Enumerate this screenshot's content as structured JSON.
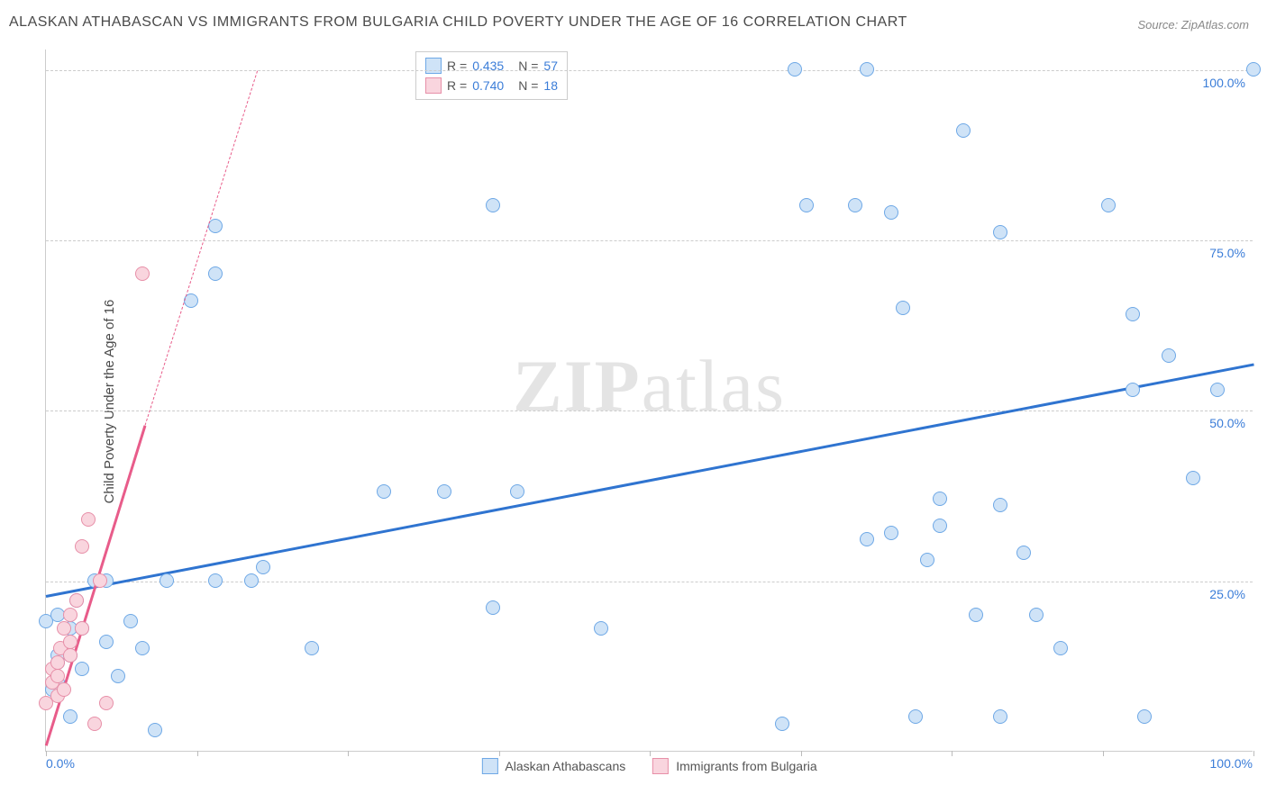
{
  "title": "ALASKAN ATHABASCAN VS IMMIGRANTS FROM BULGARIA CHILD POVERTY UNDER THE AGE OF 16 CORRELATION CHART",
  "source": "Source: ZipAtlas.com",
  "y_label": "Child Poverty Under the Age of 16",
  "watermark_bold": "ZIP",
  "watermark_light": "atlas",
  "chart": {
    "type": "scatter",
    "xlim": [
      0,
      100
    ],
    "ylim": [
      0,
      103
    ],
    "x_ticks": [
      0,
      12.5,
      25,
      37.5,
      50,
      62.5,
      75,
      87.5,
      100
    ],
    "y_gridlines": [
      25,
      50,
      75,
      100
    ],
    "y_tick_labels": [
      "25.0%",
      "50.0%",
      "75.0%",
      "100.0%"
    ],
    "x_tick_left": "0.0%",
    "x_tick_right": "100.0%",
    "background_color": "#ffffff",
    "grid_color": "#cccccc",
    "axis_label_color": "#3b7dd8",
    "point_radius": 8,
    "point_border_width": 1.3
  },
  "series": [
    {
      "name": "Alaskan Athabascans",
      "fill": "#cfe3f7",
      "stroke": "#6ea8e6",
      "trend_color": "#2f74d0",
      "trend": {
        "x1": 0,
        "y1": 23,
        "x2": 100,
        "y2": 57,
        "width": 3
      },
      "points": [
        [
          0,
          19
        ],
        [
          1,
          20
        ],
        [
          1,
          10
        ],
        [
          1,
          13
        ],
        [
          1,
          14
        ],
        [
          0.5,
          9
        ],
        [
          2,
          5
        ],
        [
          2,
          18
        ],
        [
          2,
          14
        ],
        [
          2.5,
          22
        ],
        [
          3,
          18
        ],
        [
          3,
          12
        ],
        [
          4,
          25
        ],
        [
          5,
          25
        ],
        [
          5,
          16
        ],
        [
          6,
          11
        ],
        [
          7,
          19
        ],
        [
          8,
          15
        ],
        [
          9,
          3
        ],
        [
          10,
          25
        ],
        [
          12,
          66
        ],
        [
          14,
          70
        ],
        [
          14,
          77
        ],
        [
          14,
          25
        ],
        [
          17,
          25
        ],
        [
          18,
          27
        ],
        [
          22,
          15
        ],
        [
          28,
          38
        ],
        [
          33,
          38
        ],
        [
          37,
          80
        ],
        [
          37,
          21
        ],
        [
          39,
          38
        ],
        [
          46,
          18
        ],
        [
          61,
          4
        ],
        [
          62,
          100
        ],
        [
          63,
          80
        ],
        [
          67,
          80
        ],
        [
          68,
          31
        ],
        [
          68,
          100
        ],
        [
          70,
          79
        ],
        [
          70,
          32
        ],
        [
          71,
          65
        ],
        [
          72,
          5
        ],
        [
          73,
          28
        ],
        [
          74,
          37
        ],
        [
          74,
          33
        ],
        [
          76,
          91
        ],
        [
          77,
          20
        ],
        [
          79,
          36
        ],
        [
          79,
          76
        ],
        [
          79,
          5
        ],
        [
          81,
          29
        ],
        [
          82,
          20
        ],
        [
          84,
          15
        ],
        [
          88,
          80
        ],
        [
          90,
          53
        ],
        [
          90,
          64
        ],
        [
          91,
          5
        ],
        [
          93,
          58
        ],
        [
          95,
          40
        ],
        [
          97,
          53
        ],
        [
          100,
          100
        ]
      ]
    },
    {
      "name": "Immigrants from Bulgaria",
      "fill": "#f9d5de",
      "stroke": "#e78fa8",
      "trend_color": "#e85c8a",
      "trend": {
        "x1": 0,
        "y1": 1,
        "x2": 8.2,
        "y2": 48,
        "width": 2.5
      },
      "trend_dash": {
        "x1": 8.2,
        "y1": 48,
        "x2": 17.5,
        "y2": 100
      },
      "points": [
        [
          0,
          7
        ],
        [
          0.5,
          10
        ],
        [
          0.5,
          12
        ],
        [
          1,
          8
        ],
        [
          1,
          11
        ],
        [
          1,
          13
        ],
        [
          1.2,
          15
        ],
        [
          1.5,
          9
        ],
        [
          1.5,
          18
        ],
        [
          2,
          14
        ],
        [
          2,
          16
        ],
        [
          2,
          20
        ],
        [
          2.5,
          22
        ],
        [
          3,
          18
        ],
        [
          3,
          30
        ],
        [
          3.5,
          34
        ],
        [
          4,
          4
        ],
        [
          4.5,
          25
        ],
        [
          5,
          7
        ],
        [
          8,
          70
        ]
      ]
    }
  ],
  "correlation_legend": {
    "rows": [
      {
        "swatch_fill": "#cfe3f7",
        "swatch_stroke": "#6ea8e6",
        "r_label": "R =",
        "r_value": "0.435",
        "n_label": "N =",
        "n_value": "57"
      },
      {
        "swatch_fill": "#f9d5de",
        "swatch_stroke": "#e78fa8",
        "r_label": "R =",
        "r_value": "0.740",
        "n_label": "N =",
        "n_value": "18"
      }
    ]
  },
  "bottom_legend": [
    {
      "swatch_fill": "#cfe3f7",
      "swatch_stroke": "#6ea8e6",
      "label": "Alaskan Athabascans"
    },
    {
      "swatch_fill": "#f9d5de",
      "swatch_stroke": "#e78fa8",
      "label": "Immigrants from Bulgaria"
    }
  ]
}
